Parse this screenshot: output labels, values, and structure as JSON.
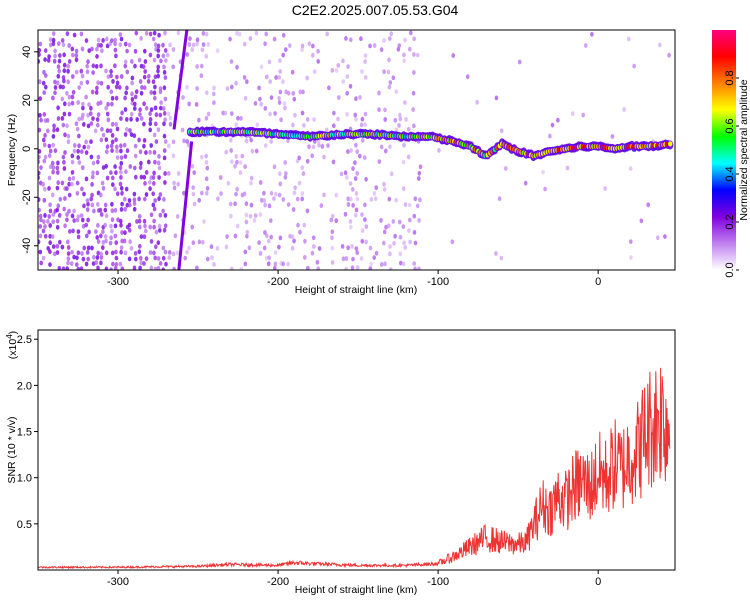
{
  "page": {
    "title": "C2E2.2025.007.05.53.G04"
  },
  "chart_data": [
    {
      "type": "heatmap",
      "xlabel": "Height of straight line (km)",
      "ylabel": "Frequency (Hz)",
      "xlim": [
        -350,
        48
      ],
      "ylim": [
        -50,
        49
      ],
      "x_ticks": [
        -300,
        -200,
        -100,
        0
      ],
      "y_ticks": [
        -40,
        -20,
        0,
        20,
        40
      ],
      "x_tick_labels": [
        "-300",
        "-200",
        "-100",
        "0"
      ],
      "y_tick_labels": [
        "-40",
        "-20",
        "0",
        "20",
        "40"
      ],
      "colorbar": {
        "label": "Normalized spectral amplitude",
        "range": [
          0,
          1
        ],
        "ticks": [
          0,
          0.2,
          0.4,
          0.6,
          0.8
        ],
        "tick_labels": [
          "0.0",
          "0.2",
          "0.4",
          "0.6",
          "0.8"
        ],
        "colors": [
          "#ffffff",
          "#c080f0",
          "#8000e0",
          "#0000ff",
          "#00ffff",
          "#00ff00",
          "#ffff00",
          "#ff8000",
          "#ff0000",
          "#ff0080"
        ]
      },
      "ridge": {
        "x": [
          -255,
          -240,
          -220,
          -200,
          -180,
          -160,
          -140,
          -120,
          -105,
          -90,
          -80,
          -70,
          -60,
          -50,
          -40,
          -30,
          -20,
          -10,
          0,
          10,
          20,
          30,
          45
        ],
        "y": [
          7,
          7,
          7,
          6,
          5,
          6,
          6,
          5,
          5,
          3,
          1,
          -3,
          2,
          -1,
          -3,
          -1,
          0,
          1,
          1,
          0,
          1,
          1,
          2
        ]
      },
      "diagonal_streak": {
        "x": [
          -262,
          -254
        ],
        "y": [
          -50,
          3
        ]
      },
      "upper_streak": {
        "x": [
          -265,
          -257
        ],
        "y": [
          8,
          49
        ]
      }
    },
    {
      "type": "line",
      "xlabel": "Height of straight line (km)",
      "ylabel": "SNR (10 * v/v)",
      "multiplier_label": "(x10",
      "multiplier_exponent": "4",
      "multiplier_suffix": ")",
      "xlim": [
        -350,
        48
      ],
      "ylim": [
        0,
        2.6
      ],
      "x_ticks": [
        -300,
        -200,
        -100,
        0
      ],
      "y_ticks": [
        0.5,
        1.0,
        1.5,
        2.0,
        2.5
      ],
      "x_tick_labels": [
        "-300",
        "-200",
        "-100",
        "0"
      ],
      "y_tick_labels": [
        "0.5",
        "1.0",
        "1.5",
        "2.0",
        "2.5"
      ],
      "series": [
        {
          "color": "#ee3333",
          "x": [
            -350,
            -300,
            -250,
            -230,
            -200,
            -190,
            -180,
            -150,
            -120,
            -100,
            -90,
            -80,
            -70,
            -60,
            -50,
            -45,
            -40,
            -35,
            -30,
            -25,
            -20,
            -15,
            -10,
            -5,
            0,
            5,
            10,
            15,
            20,
            25,
            30,
            35,
            40,
            45
          ],
          "y": [
            0.03,
            0.03,
            0.04,
            0.06,
            0.05,
            0.08,
            0.07,
            0.05,
            0.05,
            0.07,
            0.15,
            0.25,
            0.35,
            0.3,
            0.28,
            0.3,
            0.5,
            0.7,
            0.65,
            0.8,
            0.75,
            0.9,
            0.95,
            0.9,
            1.05,
            1.0,
            1.15,
            1.1,
            1.25,
            1.3,
            1.5,
            1.6,
            1.7,
            1.5
          ]
        }
      ]
    }
  ]
}
